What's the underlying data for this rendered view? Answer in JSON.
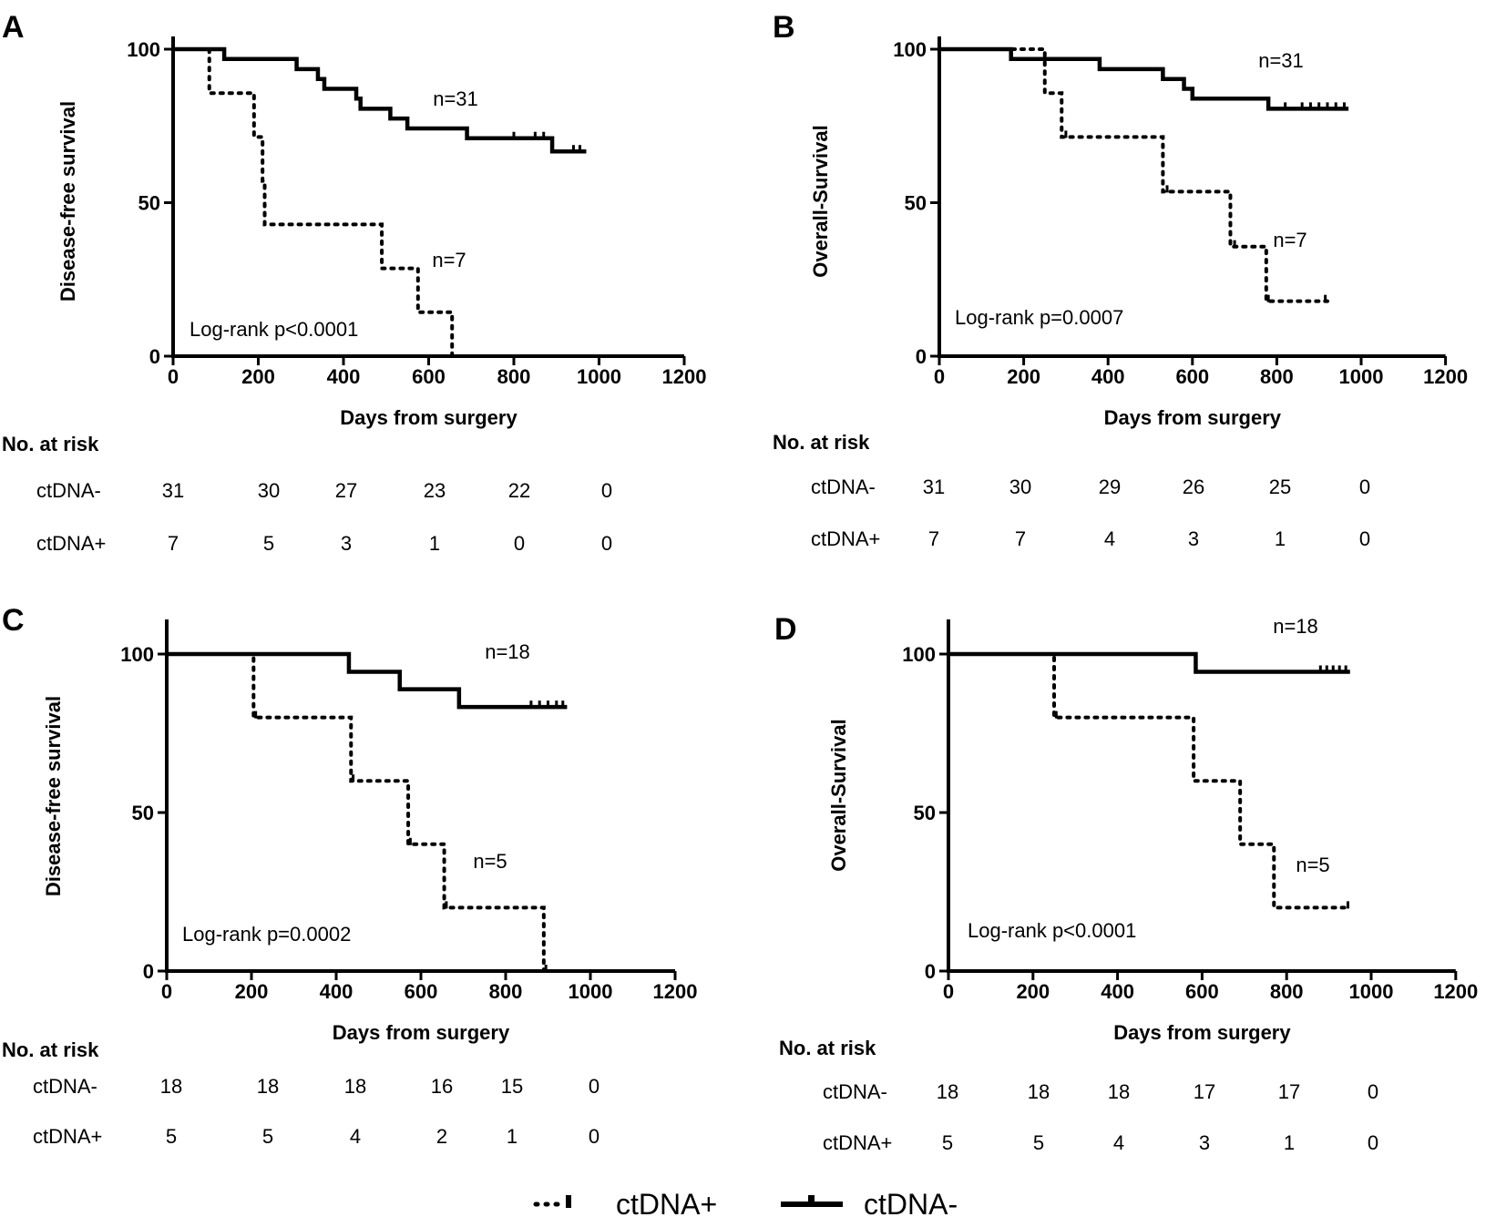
{
  "legend": {
    "items": [
      {
        "label": "ctDNA+",
        "style": "dotted"
      },
      {
        "label": "ctDNA-",
        "style": "solid"
      }
    ]
  },
  "chart_data": [
    {
      "id": "A",
      "type": "line",
      "subtype": "kaplan-meier",
      "panel_label": "A",
      "title": "",
      "xlabel": "Days from surgery",
      "ylabel": "Disease-free survival",
      "xlim": [
        0,
        1200
      ],
      "ylim": [
        0,
        110
      ],
      "xticks": [
        0,
        200,
        400,
        600,
        800,
        1000,
        1200
      ],
      "yticks": [
        0,
        50,
        100
      ],
      "annotation": "Log-rank p<0.0001",
      "series": [
        {
          "name": "ctDNA-",
          "style": "solid",
          "n_label": "n=31",
          "steps": [
            [
              0,
              100
            ],
            [
              120,
              96.8
            ],
            [
              290,
              93.5
            ],
            [
              340,
              90.3
            ],
            [
              355,
              87.1
            ],
            [
              430,
              83.9
            ],
            [
              440,
              80.6
            ],
            [
              510,
              77.4
            ],
            [
              550,
              74.2
            ],
            [
              690,
              71
            ],
            [
              890,
              66.7
            ],
            [
              970,
              66.7
            ]
          ],
          "censored": [
            800,
            850,
            870,
            940,
            955
          ]
        },
        {
          "name": "ctDNA+",
          "style": "dotted",
          "n_label": "n=7",
          "steps": [
            [
              0,
              100
            ],
            [
              85,
              85.7
            ],
            [
              190,
              71.4
            ],
            [
              210,
              57.1
            ],
            [
              215,
              42.9
            ],
            [
              490,
              28.6
            ],
            [
              575,
              14.3
            ],
            [
              655,
              0
            ]
          ],
          "censored": []
        }
      ],
      "risk_table": {
        "title": "No. at risk",
        "times": [
          0,
          200,
          400,
          600,
          800,
          1000
        ],
        "rows": [
          {
            "label": "ctDNA-",
            "values": [
              "31",
              "30",
              "27",
              "23",
              "22",
              "0"
            ]
          },
          {
            "label": "ctDNA+",
            "values": [
              "7",
              "5",
              "3",
              "1",
              "0",
              "0"
            ]
          }
        ]
      }
    },
    {
      "id": "B",
      "type": "line",
      "subtype": "kaplan-meier",
      "panel_label": "B",
      "title": "",
      "xlabel": "Days from surgery",
      "ylabel": "Overall-Survival",
      "xlim": [
        0,
        1200
      ],
      "ylim": [
        0,
        110
      ],
      "xticks": [
        0,
        200,
        400,
        600,
        800,
        1000,
        1200
      ],
      "yticks": [
        0,
        50,
        100
      ],
      "annotation": "Log-rank p=0.0007",
      "series": [
        {
          "name": "ctDNA-",
          "style": "solid",
          "n_label": "n=31",
          "steps": [
            [
              0,
              100
            ],
            [
              170,
              96.8
            ],
            [
              380,
              93.5
            ],
            [
              530,
              90.3
            ],
            [
              580,
              87.1
            ],
            [
              600,
              83.9
            ],
            [
              780,
              80.6
            ],
            [
              970,
              80.6
            ]
          ],
          "censored": [
            820,
            860,
            880,
            900,
            920,
            940,
            960
          ]
        },
        {
          "name": "ctDNA+",
          "style": "dotted",
          "n_label": "n=7",
          "steps": [
            [
              0,
              100
            ],
            [
              250,
              85.7
            ],
            [
              290,
              71.4
            ],
            [
              530,
              53.6
            ],
            [
              690,
              35.7
            ],
            [
              775,
              17.9
            ],
            [
              920,
              17.9
            ]
          ],
          "censored": [
            300,
            540,
            700,
            780,
            915
          ]
        }
      ],
      "risk_table": {
        "title": "No. at risk",
        "times": [
          0,
          200,
          400,
          600,
          800,
          1000
        ],
        "rows": [
          {
            "label": "ctDNA-",
            "values": [
              "31",
              "30",
              "29",
              "26",
              "25",
              "0"
            ]
          },
          {
            "label": "ctDNA+",
            "values": [
              "7",
              "7",
              "4",
              "3",
              "1",
              "0"
            ]
          }
        ]
      }
    },
    {
      "id": "C",
      "type": "line",
      "subtype": "kaplan-meier",
      "panel_label": "C",
      "title": "",
      "xlabel": "Days from surgery",
      "ylabel": "Disease-free survival",
      "xlim": [
        0,
        1200
      ],
      "ylim": [
        0,
        110
      ],
      "xticks": [
        0,
        200,
        400,
        600,
        800,
        1000,
        1200
      ],
      "yticks": [
        0,
        50,
        100
      ],
      "annotation": "Log-rank p=0.0002",
      "series": [
        {
          "name": "ctDNA-",
          "style": "solid",
          "n_label": "n=18",
          "steps": [
            [
              0,
              100
            ],
            [
              430,
              94.4
            ],
            [
              550,
              88.9
            ],
            [
              690,
              83.3
            ],
            [
              945,
              83.3
            ]
          ],
          "censored": [
            860,
            880,
            900,
            920,
            935
          ]
        },
        {
          "name": "ctDNA+",
          "style": "dotted",
          "n_label": "n=5",
          "steps": [
            [
              0,
              100
            ],
            [
              205,
              80
            ],
            [
              435,
              60
            ],
            [
              570,
              40
            ],
            [
              655,
              20
            ],
            [
              890,
              0
            ]
          ],
          "censored": [
            210,
            440,
            575,
            660,
            895
          ]
        }
      ],
      "risk_table": {
        "title": "No. at risk",
        "times": [
          0,
          200,
          400,
          600,
          800,
          1000
        ],
        "rows": [
          {
            "label": "ctDNA-",
            "values": [
              "18",
              "18",
              "18",
              "16",
              "15",
              "0"
            ]
          },
          {
            "label": "ctDNA+",
            "values": [
              "5",
              "5",
              "4",
              "2",
              "1",
              "0"
            ]
          }
        ]
      }
    },
    {
      "id": "D",
      "type": "line",
      "subtype": "kaplan-meier",
      "panel_label": "D",
      "title": "",
      "xlabel": "Days from surgery",
      "ylabel": "Overall-Survival",
      "xlim": [
        0,
        1200
      ],
      "ylim": [
        0,
        110
      ],
      "xticks": [
        0,
        200,
        400,
        600,
        800,
        1000,
        1200
      ],
      "yticks": [
        0,
        50,
        100
      ],
      "annotation": "Log-rank p<0.0001",
      "series": [
        {
          "name": "ctDNA-",
          "style": "solid",
          "n_label": "n=18",
          "steps": [
            [
              0,
              100
            ],
            [
              585,
              94.4
            ],
            [
              950,
              94.4
            ]
          ],
          "censored": [
            880,
            895,
            910,
            925,
            940
          ]
        },
        {
          "name": "ctDNA+",
          "style": "dotted",
          "n_label": "n=5",
          "steps": [
            [
              0,
              100
            ],
            [
              250,
              80
            ],
            [
              580,
              60
            ],
            [
              690,
              40
            ],
            [
              770,
              20
            ],
            [
              950,
              20
            ]
          ],
          "censored": [
            255,
            945
          ]
        }
      ],
      "risk_table": {
        "title": "No. at risk",
        "times": [
          0,
          200,
          400,
          600,
          800,
          1000
        ],
        "rows": [
          {
            "label": "ctDNA-",
            "values": [
              "18",
              "18",
              "18",
              "17",
              "17",
              "0"
            ]
          },
          {
            "label": "ctDNA+",
            "values": [
              "5",
              "5",
              "4",
              "3",
              "1",
              "0"
            ]
          }
        ]
      }
    }
  ]
}
